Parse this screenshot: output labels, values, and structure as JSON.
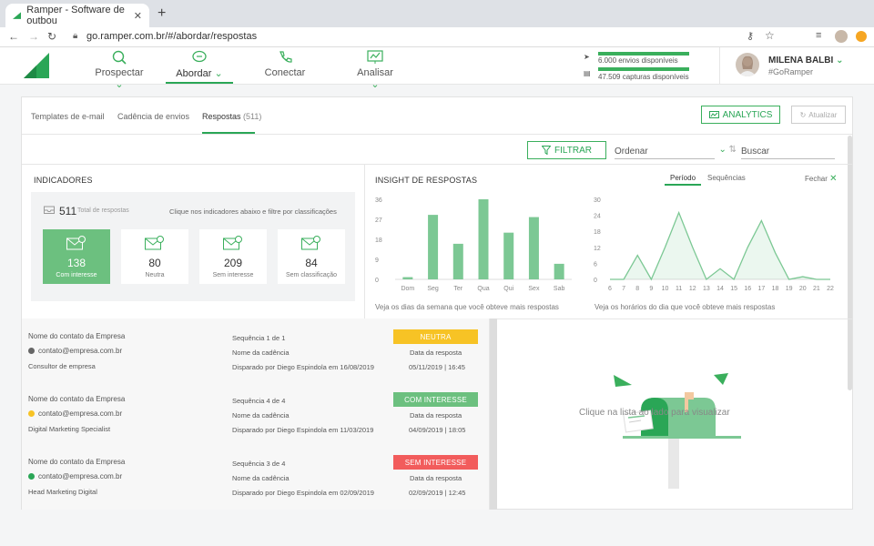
{
  "browser": {
    "tab_title": "Ramper - Software de outbou",
    "url": "go.ramper.com.br/#/abordar/respostas"
  },
  "header": {
    "nav": [
      {
        "label": "Prospectar",
        "icon": "search-icon"
      },
      {
        "label": "Abordar",
        "icon": "chat-icon"
      },
      {
        "label": "Conectar",
        "icon": "phone-icon"
      },
      {
        "label": "Analisar",
        "icon": "analytics-icon"
      }
    ],
    "quota_sends": "6.000 envios disponíveis",
    "quota_captures": "47.509 capturas disponíveis",
    "user_name": "MILENA BALBI",
    "user_handle": "#GoRamper"
  },
  "subtabs": {
    "templates": "Templates de e-mail",
    "cadence": "Cadência de envios",
    "responses": "Respostas",
    "responses_count": "(511)"
  },
  "actions": {
    "analytics": "ANALYTICS",
    "update": "Atualizar",
    "filter": "FILTRAR",
    "order": "Ordenar",
    "search_placeholder": "Buscar"
  },
  "indicators": {
    "title": "INDICADORES",
    "total": "511",
    "total_label": "Total de respostas",
    "hint": "Clique nos indicadores abaixo e filtre por classificações",
    "boxes": [
      {
        "value": "138",
        "label": "Com interesse"
      },
      {
        "value": "80",
        "label": "Neutra"
      },
      {
        "value": "209",
        "label": "Sem interesse"
      },
      {
        "value": "84",
        "label": "Sem classificação"
      }
    ]
  },
  "insight": {
    "title": "INSIGHT DE RESPOSTAS",
    "tab_period": "Período",
    "tab_sequences": "Sequências",
    "close": "Fechar",
    "week_note": "Veja os dias da semana que você obteve mais respostas",
    "hour_note": "Veja os horários do dia que você obteve mais respostas"
  },
  "chart_data": [
    {
      "type": "bar",
      "categories": [
        "Dom",
        "Seg",
        "Ter",
        "Qua",
        "Qui",
        "Sex",
        "Sab"
      ],
      "values": [
        1,
        29,
        16,
        36,
        21,
        28,
        7
      ],
      "ylim": [
        0,
        36
      ],
      "yticks": [
        "36",
        "27",
        "18",
        "9",
        "0"
      ],
      "color": "#7cc894"
    },
    {
      "type": "area",
      "x": [
        "6",
        "7",
        "8",
        "9",
        "10",
        "11",
        "12",
        "13",
        "14",
        "15",
        "16",
        "17",
        "18",
        "19",
        "20",
        "21",
        "22"
      ],
      "values": [
        0,
        0,
        9,
        0,
        12,
        25,
        12,
        0,
        4,
        0,
        12,
        22,
        10,
        0,
        1,
        0,
        0
      ],
      "ylim": [
        0,
        30
      ],
      "yticks": [
        "30",
        "24",
        "18",
        "12",
        "6",
        "0"
      ],
      "color": "#7cc894"
    }
  ],
  "responses": [
    {
      "contact": "Nome do contato da Empresa",
      "email": "contato@empresa.com.br",
      "dot_color": "#666666",
      "role": "Consultor de empresa",
      "sequence": "Sequência 1 de 1",
      "cadence": "Nome da cadência",
      "sent_by": "Disparado por Diego Espindola em 16/08/2019",
      "status": "NEUTRA",
      "status_color": "#f7c325",
      "date_label": "Data da resposta",
      "date": "05/11/2019 | 16:45"
    },
    {
      "contact": "Nome do contato da Empresa",
      "email": "contato@empresa.com.br",
      "dot_color": "#f7c325",
      "role": "Digital Marketing Specialist",
      "sequence": "Sequência 4 de 4",
      "cadence": "Nome da cadência",
      "sent_by": "Disparado por Diego Espindola em 11/03/2019",
      "status": "COM INTERESSE",
      "status_color": "#6cc07f",
      "date_label": "Data da resposta",
      "date": "04/09/2019 | 18:05"
    },
    {
      "contact": "Nome do contato da Empresa",
      "email": "contato@empresa.com.br",
      "dot_color": "#2aa656",
      "role": "Head Marketing Digital",
      "sequence": "Sequência 3 de 4",
      "cadence": "Nome da cadência",
      "sent_by": "Disparado por Diego Espindola em 02/09/2019",
      "status": "SEM INTERESSE",
      "status_color": "#f25c5c",
      "date_label": "Data da resposta",
      "date": "02/09/2019 | 12:45"
    }
  ],
  "empty_state": "Clique na lista ao lado para visualizar"
}
